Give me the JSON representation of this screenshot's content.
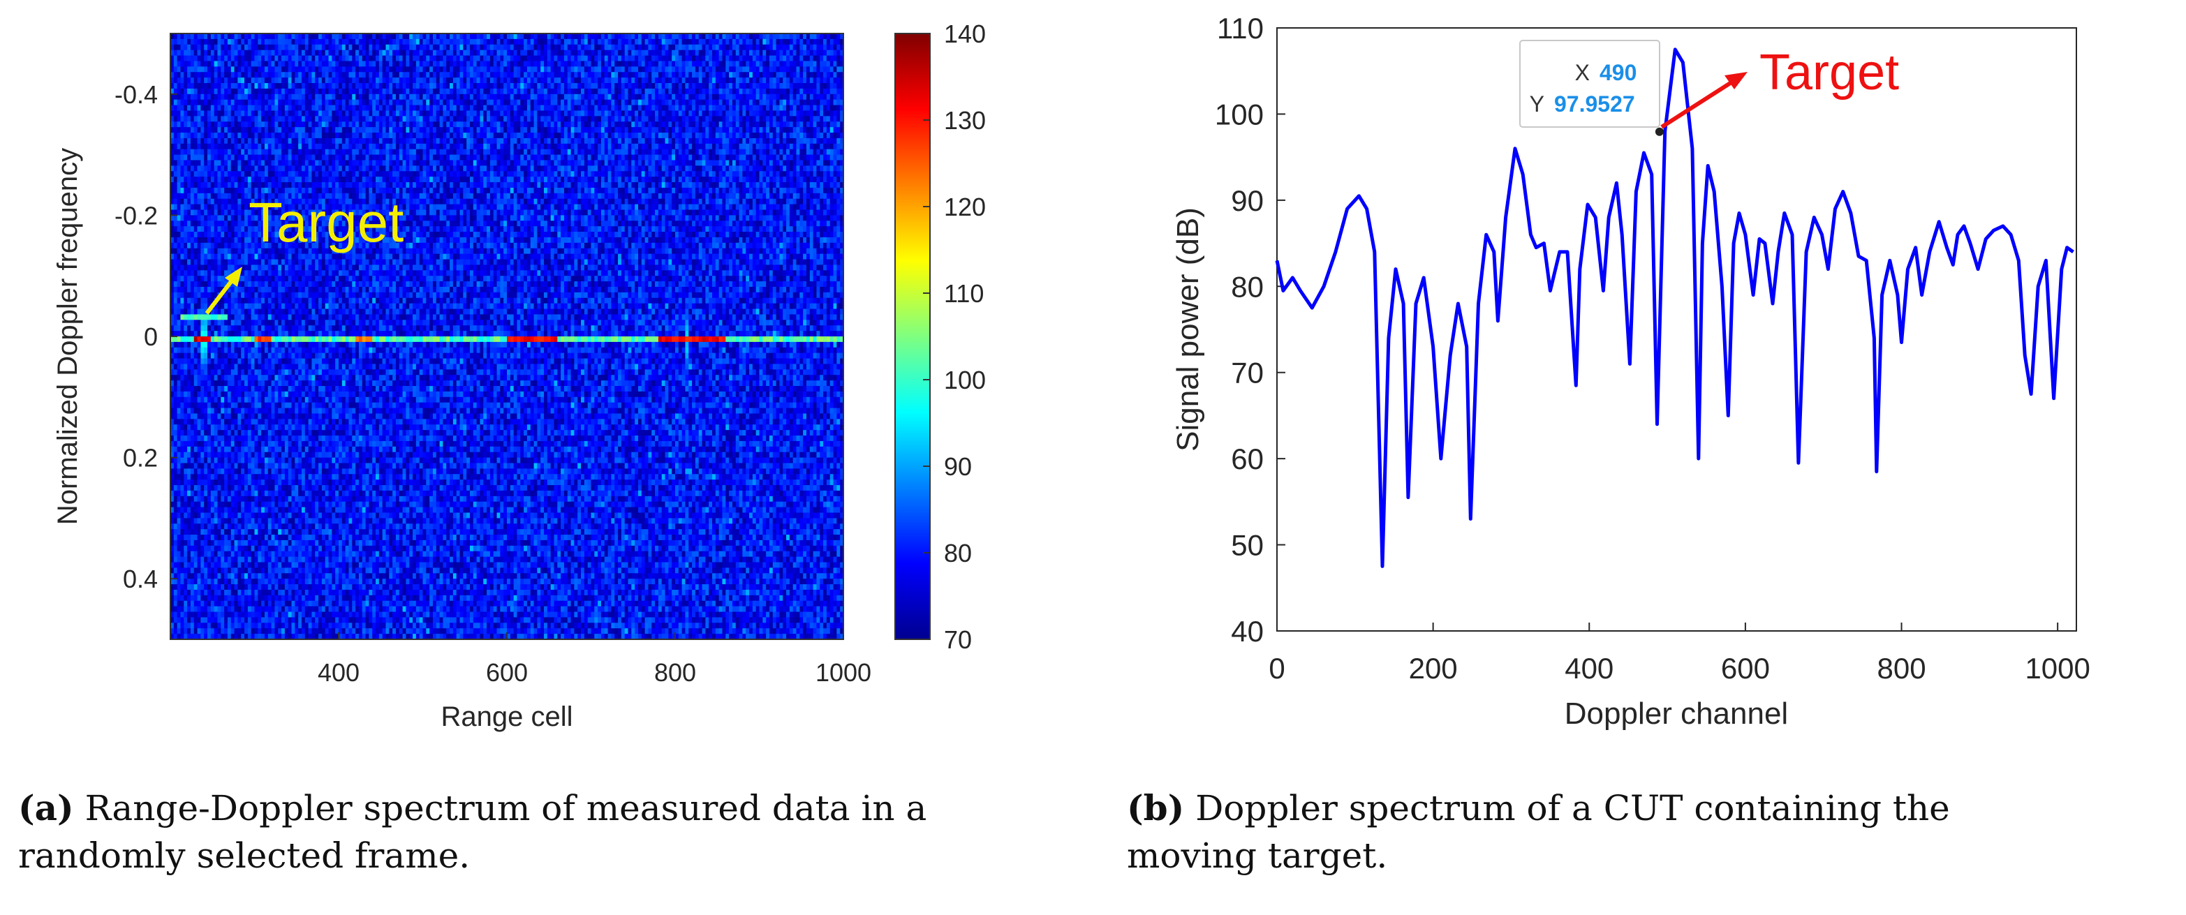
{
  "chart_data": [
    {
      "type": "heatmap",
      "title": "",
      "xlabel": "Range cell",
      "ylabel": "Normalized Doppler frequency",
      "xlim": [
        200,
        1000
      ],
      "ylim": [
        -0.5,
        0.5
      ],
      "y_reversed": true,
      "xticks": [
        400,
        600,
        800,
        1000
      ],
      "yticks": [
        -0.4,
        -0.2,
        0,
        0.2,
        0.4
      ],
      "ytick_labels": [
        "-0.4",
        "-0.2",
        "0",
        "0.2",
        "0.4"
      ],
      "colorbar": {
        "range": [
          70,
          140
        ],
        "ticks": [
          70,
          80,
          90,
          100,
          110,
          120,
          130,
          140
        ],
        "colormap": "jet"
      },
      "background_level": 80,
      "zero_doppler_line": {
        "y": 0,
        "base_level": 100,
        "strong_segments": [
          {
            "from": 230,
            "to": 248,
            "level": 138
          },
          {
            "from": 300,
            "to": 320,
            "level": 130
          },
          {
            "from": 420,
            "to": 440,
            "level": 128
          },
          {
            "from": 600,
            "to": 660,
            "level": 135
          },
          {
            "from": 780,
            "to": 860,
            "level": 135
          }
        ]
      },
      "vertical_streaks": [
        {
          "x": 240,
          "level": 100
        },
        {
          "x": 815,
          "level": 98
        }
      ],
      "target_point": {
        "x": 240,
        "y": -0.03,
        "level": 105
      },
      "annotation": {
        "text": "Target",
        "color": "#f4ee00"
      }
    },
    {
      "type": "line",
      "title": "",
      "xlabel": "Doppler channel",
      "ylabel": "Signal power (dB)",
      "xlim": [
        0,
        1024
      ],
      "ylim": [
        40,
        110
      ],
      "xticks": [
        0,
        200,
        400,
        600,
        800,
        1000
      ],
      "yticks": [
        40,
        50,
        60,
        70,
        80,
        90,
        100,
        110
      ],
      "color": "#0000ff",
      "series": [
        {
          "name": "Doppler spectrum",
          "x": [
            0,
            8,
            20,
            30,
            45,
            60,
            75,
            90,
            105,
            115,
            125,
            135,
            143,
            152,
            162,
            168,
            178,
            188,
            200,
            210,
            222,
            232,
            243,
            248,
            258,
            268,
            278,
            283,
            293,
            305,
            315,
            325,
            332,
            342,
            350,
            362,
            372,
            383,
            388,
            398,
            408,
            418,
            425,
            435,
            442,
            452,
            460,
            470,
            480,
            487,
            497,
            510,
            520,
            532,
            540,
            545,
            552,
            560,
            570,
            578,
            585,
            592,
            600,
            610,
            618,
            625,
            635,
            642,
            650,
            660,
            668,
            678,
            688,
            698,
            706,
            715,
            725,
            735,
            745,
            755,
            765,
            768,
            775,
            785,
            795,
            800,
            808,
            818,
            826,
            836,
            848,
            858,
            866,
            872,
            880,
            888,
            898,
            908,
            918,
            930,
            940,
            950,
            958,
            966,
            975,
            985,
            995,
            1005,
            1012,
            1020
          ],
          "y": [
            83,
            79.5,
            81,
            79.5,
            77.5,
            80,
            84,
            89,
            90.5,
            89,
            84,
            47.5,
            74,
            82,
            78,
            55.5,
            78,
            81,
            73,
            60,
            72,
            78,
            73,
            53,
            78,
            86,
            84,
            76,
            88,
            96,
            93,
            86,
            84.5,
            85,
            79.5,
            84,
            84,
            68.5,
            82,
            89.5,
            88,
            79.5,
            88,
            92,
            86,
            71,
            91,
            95.5,
            93,
            64,
            98,
            107.5,
            106,
            96,
            60,
            85,
            94,
            91,
            80,
            65,
            85,
            88.5,
            86,
            79,
            85.5,
            85,
            78,
            84,
            88.5,
            86,
            59.5,
            84,
            88,
            86,
            82,
            89,
            91,
            88.5,
            83.5,
            83,
            74,
            58.5,
            79,
            83,
            79,
            73.5,
            82,
            84.5,
            79,
            84,
            87.5,
            84.5,
            82.5,
            86,
            87,
            85,
            82,
            85.5,
            86.5,
            87,
            86,
            83,
            72,
            67.5,
            80,
            83,
            67,
            82,
            84.5,
            84
          ]
        }
      ],
      "datatip": {
        "x_label": "X",
        "x_value": "490",
        "y_label": "Y",
        "y_value": "97.9527",
        "x": 490,
        "y": 97.9527
      },
      "annotation": {
        "text": "Target",
        "color": "#ee1111"
      }
    }
  ],
  "captions": {
    "a": {
      "label": "(a)",
      "line1": "Range-Doppler spectrum of measured data in a",
      "line2": "randomly selected frame."
    },
    "b": {
      "label": "(b)",
      "line1": "Doppler spectrum of a CUT containing the",
      "line2": "moving target."
    }
  }
}
